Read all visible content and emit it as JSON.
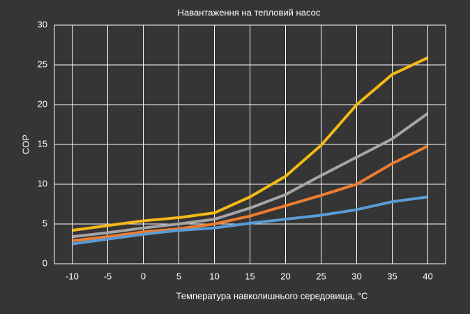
{
  "chart_data": {
    "type": "line",
    "title": "Навантаження на тепловий насос",
    "x_label": "Температура навколишнього середовища, °C",
    "y_label": "COP",
    "x": [
      -10,
      -5,
      0,
      5,
      10,
      15,
      20,
      25,
      30,
      35,
      40
    ],
    "xlim": [
      -12.5,
      42.5
    ],
    "xticks": [
      -10,
      -5,
      0,
      5,
      10,
      15,
      20,
      25,
      30,
      35,
      40
    ],
    "ylim": [
      0,
      30
    ],
    "yticks": [
      0,
      5,
      10,
      15,
      20,
      25,
      30
    ],
    "grid": true,
    "series": [
      {
        "color": "#f5b916",
        "values": [
          4.2,
          4.8,
          5.4,
          5.8,
          6.4,
          8.4,
          11.0,
          14.9,
          20.0,
          23.8,
          25.9
        ]
      },
      {
        "color": "#a5a5a5",
        "values": [
          3.4,
          3.9,
          4.5,
          5.0,
          5.6,
          7.0,
          8.7,
          11.1,
          13.4,
          15.7,
          18.9
        ]
      },
      {
        "color": "#ed7d31",
        "values": [
          2.9,
          3.4,
          4.0,
          4.4,
          5.0,
          6.0,
          7.3,
          8.6,
          10.0,
          12.6,
          14.8
        ]
      },
      {
        "color": "#5b9bd5",
        "values": [
          2.5,
          3.1,
          3.7,
          4.2,
          4.5,
          5.1,
          5.6,
          6.1,
          6.8,
          7.8,
          8.4
        ]
      }
    ]
  }
}
